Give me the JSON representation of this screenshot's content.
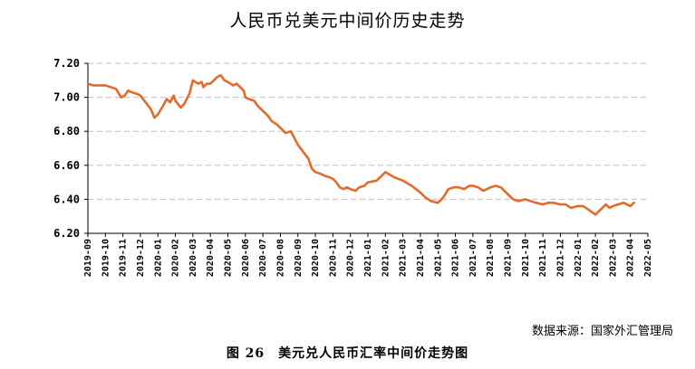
{
  "chart_data": {
    "type": "line",
    "title": "人民币兑美元中间价历史走势",
    "xlabel": "",
    "ylabel": "",
    "ylim": [
      6.2,
      7.2
    ],
    "yticks": [
      "7.20",
      "7.00",
      "6.80",
      "6.60",
      "6.40",
      "6.20"
    ],
    "x_tick_labels": [
      "2019-09",
      "2019-10",
      "2019-11",
      "2019-12",
      "2020-01",
      "2020-02",
      "2020-03",
      "2020-04",
      "2020-05",
      "2020-06",
      "2020-07",
      "2020-08",
      "2020-09",
      "2020-10",
      "2020-11",
      "2020-12",
      "2021-01",
      "2021-02",
      "2021-03",
      "2021-04",
      "2021-05",
      "2021-06",
      "2021-07",
      "2021-08",
      "2021-09",
      "2021-10",
      "2021-11",
      "2021-12",
      "2022-01",
      "2022-02",
      "2022-03",
      "2022-04",
      "2022-05"
    ],
    "grid": "horizontal-dashed",
    "series": [
      {
        "color": "#e46a2c",
        "x": [
          0.0,
          0.3,
          0.5,
          0.8,
          1.0,
          1.3,
          1.6,
          1.9,
          2.1,
          2.3,
          2.5,
          2.8,
          3.0,
          3.3,
          3.6,
          3.8,
          4.0,
          4.3,
          4.5,
          4.7,
          4.9,
          5.0,
          5.3,
          5.5,
          5.8,
          6.0,
          6.3,
          6.5,
          6.6,
          6.8,
          7.0,
          7.2,
          7.4,
          7.6,
          7.8,
          8.0,
          8.3,
          8.5,
          8.7,
          8.9,
          9.0,
          9.2,
          9.5,
          9.7,
          10.0,
          10.3,
          10.5,
          10.8,
          11.0,
          11.3,
          11.6,
          11.8,
          12.0,
          12.3,
          12.6,
          12.8,
          13.0,
          13.3,
          13.5,
          13.8,
          14.0,
          14.2,
          14.4,
          14.6,
          14.8,
          15.0,
          15.3,
          15.5,
          15.8,
          16.0,
          16.5,
          17.0,
          17.5,
          18.0,
          18.5,
          19.0,
          19.3,
          19.6,
          20.0,
          20.3,
          20.6,
          20.9,
          21.2,
          21.5,
          21.8,
          22.0,
          22.3,
          22.6,
          23.0,
          23.3,
          23.6,
          24.0,
          24.3,
          24.6,
          25.0,
          25.3,
          25.6,
          26.0,
          26.3,
          26.6,
          27.0,
          27.3,
          27.6,
          28.0,
          28.3,
          28.6,
          29.0,
          29.2,
          29.4,
          29.6,
          29.8,
          30.0,
          30.3,
          30.6,
          31.0,
          31.2
        ],
        "values": [
          7.08,
          7.07,
          7.07,
          7.07,
          7.07,
          7.06,
          7.05,
          7.0,
          7.01,
          7.04,
          7.03,
          7.02,
          7.01,
          6.97,
          6.93,
          6.88,
          6.9,
          6.95,
          6.99,
          6.97,
          7.01,
          6.98,
          6.94,
          6.96,
          7.02,
          7.1,
          7.08,
          7.09,
          7.06,
          7.08,
          7.08,
          7.1,
          7.12,
          7.13,
          7.1,
          7.09,
          7.07,
          7.08,
          7.06,
          7.04,
          7.0,
          6.99,
          6.98,
          6.95,
          6.92,
          6.89,
          6.86,
          6.84,
          6.82,
          6.79,
          6.8,
          6.76,
          6.72,
          6.68,
          6.64,
          6.58,
          6.56,
          6.55,
          6.54,
          6.53,
          6.52,
          6.5,
          6.47,
          6.46,
          6.47,
          6.46,
          6.45,
          6.47,
          6.48,
          6.5,
          6.51,
          6.56,
          6.53,
          6.51,
          6.48,
          6.44,
          6.41,
          6.39,
          6.38,
          6.41,
          6.46,
          6.47,
          6.47,
          6.46,
          6.48,
          6.48,
          6.47,
          6.45,
          6.47,
          6.48,
          6.47,
          6.43,
          6.4,
          6.39,
          6.4,
          6.39,
          6.38,
          6.37,
          6.38,
          6.38,
          6.37,
          6.37,
          6.35,
          6.36,
          6.36,
          6.34,
          6.31,
          6.33,
          6.35,
          6.37,
          6.35,
          6.36,
          6.37,
          6.38,
          6.36,
          6.38
        ]
      }
    ]
  },
  "footer": {
    "source": "数据来源：国家外汇管理局",
    "caption": "图 26　美元兑人民币汇率中间价走势图"
  },
  "colors": {
    "line": "#e46a2c",
    "grid": "#bfbfbf",
    "axis": "#000000"
  }
}
